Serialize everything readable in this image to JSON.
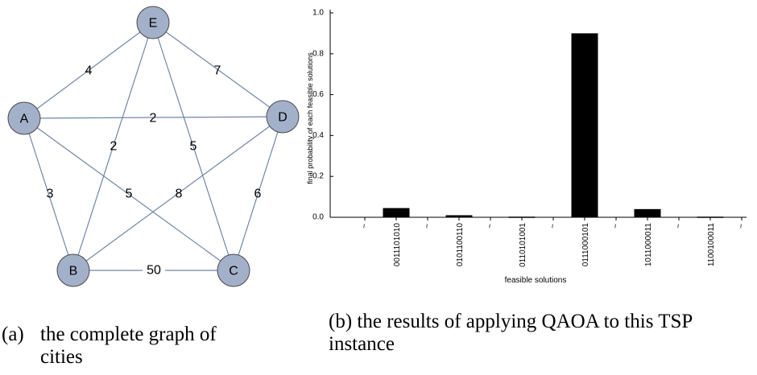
{
  "graph": {
    "nodes": [
      {
        "id": "A",
        "label": "A"
      },
      {
        "id": "B",
        "label": "B"
      },
      {
        "id": "C",
        "label": "C"
      },
      {
        "id": "D",
        "label": "D"
      },
      {
        "id": "E",
        "label": "E"
      }
    ],
    "edges": [
      {
        "from": "A",
        "to": "E",
        "weight": "4"
      },
      {
        "from": "E",
        "to": "D",
        "weight": "7"
      },
      {
        "from": "A",
        "to": "D",
        "weight": "2"
      },
      {
        "from": "E",
        "to": "B",
        "weight": "2"
      },
      {
        "from": "E",
        "to": "C",
        "weight": "5"
      },
      {
        "from": "A",
        "to": "B",
        "weight": "3"
      },
      {
        "from": "A",
        "to": "C",
        "weight": "5"
      },
      {
        "from": "D",
        "to": "B",
        "weight": "8"
      },
      {
        "from": "D",
        "to": "C",
        "weight": "6"
      },
      {
        "from": "B",
        "to": "C",
        "weight": "50"
      }
    ],
    "colors": {
      "node_fill": "#a3b0c9",
      "node_stroke": "#4a4a4a",
      "edge": "#7185a8"
    }
  },
  "chart_data": {
    "type": "bar",
    "xlabel": "feasible solutions",
    "ylabel": "final probability of each feasible solutions",
    "ylim": [
      0,
      1.0
    ],
    "y_ticks": [
      "0.0",
      "0.2",
      "0.4",
      "0.6",
      "0.8",
      "1.0"
    ],
    "categories": [
      "~",
      "0011101010",
      "~",
      "0101100110",
      "~",
      "0110101001",
      "~",
      "0111000101",
      "~",
      "1011000011",
      "~",
      "1100100011",
      "~"
    ],
    "values": [
      0,
      0.045,
      0,
      0.01,
      0,
      0.003,
      0,
      0.9,
      0,
      0.04,
      0,
      0.003,
      0
    ],
    "bar_color": "#000000"
  },
  "captions": {
    "a_label": "(a)",
    "a_text_line1": "the complete graph of",
    "a_text_line2": "cities",
    "b_text": "(b) the results of applying QAOA to this TSP instance"
  }
}
